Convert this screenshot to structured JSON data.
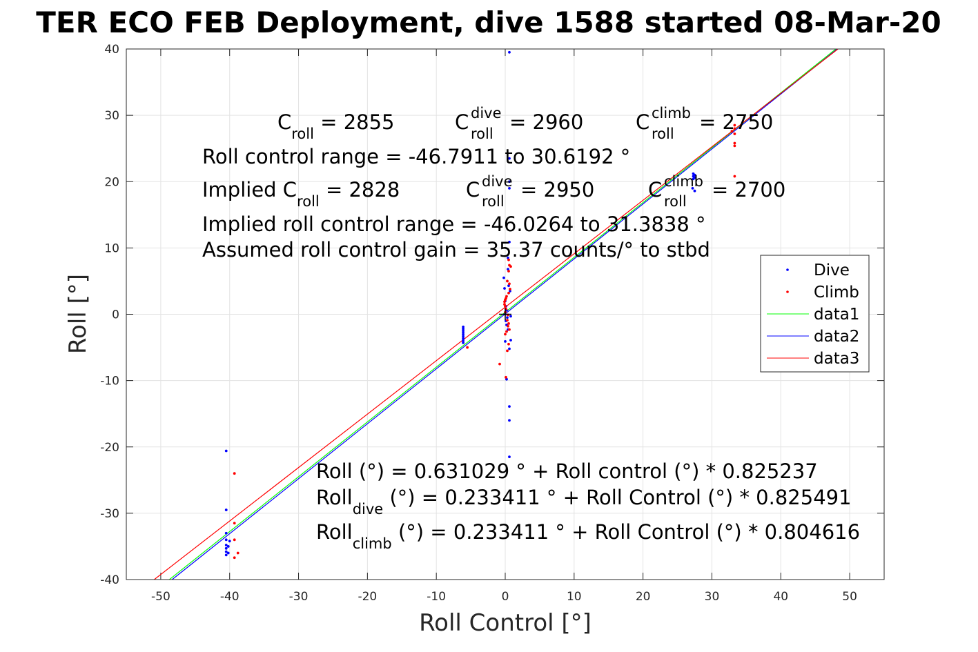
{
  "title": "TER ECO FEB Deployment, dive 1588 started 08-Mar-20",
  "chart_data": {
    "type": "scatter",
    "title": "TER ECO FEB Deployment, dive 1588 started 08-Mar-20",
    "xlabel": "Roll Control [°]",
    "ylabel": "Roll [°]",
    "xlim": [
      -55,
      55
    ],
    "ylim": [
      -40,
      40
    ],
    "x_ticks": [
      -50,
      -40,
      -30,
      -20,
      -10,
      0,
      10,
      20,
      30,
      40,
      50
    ],
    "y_ticks": [
      -40,
      -30,
      -20,
      -10,
      0,
      10,
      20,
      30,
      40
    ],
    "x_tick_labels": [
      "-50",
      "-40",
      "-30",
      "-20",
      "-10",
      "0",
      "10",
      "20",
      "30",
      "40",
      "50"
    ],
    "y_tick_labels": [
      "-40",
      "-30",
      "-20",
      "-10",
      "0",
      "10",
      "20",
      "30",
      "40"
    ],
    "grid": true,
    "legend_position": "right",
    "series": [
      {
        "name": "Dive",
        "kind": "points",
        "color": "#0000ff",
        "points": [
          [
            -40.5,
            -20.6
          ],
          [
            -40.5,
            -29.5
          ],
          [
            -40.5,
            -33.0
          ],
          [
            -40.5,
            -34.0
          ],
          [
            -40.5,
            -34.8
          ],
          [
            -40.5,
            -35.3
          ],
          [
            -40.5,
            -35.8
          ],
          [
            -40.5,
            -36.3
          ],
          [
            -40.2,
            -35.0
          ],
          [
            -40.2,
            -36.0
          ],
          [
            -40.0,
            -34.2
          ],
          [
            -6.1,
            -1.9
          ],
          [
            -6.1,
            -2.2
          ],
          [
            -6.1,
            -2.5
          ],
          [
            -6.1,
            -2.8
          ],
          [
            -6.1,
            -3.1
          ],
          [
            -6.1,
            -3.4
          ],
          [
            -6.1,
            -3.7
          ],
          [
            -6.1,
            -4.0
          ],
          [
            -6.1,
            -4.3
          ],
          [
            0.6,
            39.5
          ],
          [
            0.6,
            23.5
          ],
          [
            0.6,
            20.0
          ],
          [
            0.6,
            19.0
          ],
          [
            0.6,
            10.9
          ],
          [
            0.4,
            8.5
          ],
          [
            0.4,
            6.8
          ],
          [
            0.5,
            4.3
          ],
          [
            0.7,
            3.5
          ],
          [
            -0.2,
            5.5
          ],
          [
            -0.1,
            3.9
          ],
          [
            0.0,
            2.0
          ],
          [
            0.1,
            1.2
          ],
          [
            0.2,
            0.6
          ],
          [
            0.0,
            0.0
          ],
          [
            0.3,
            -0.5
          ],
          [
            0.1,
            -1.0
          ],
          [
            0.2,
            -1.6
          ],
          [
            0.4,
            -2.3
          ],
          [
            0.8,
            -3.9
          ],
          [
            0.0,
            -4.1
          ],
          [
            0.6,
            -5.2
          ],
          [
            0.8,
            -0.3
          ],
          [
            0.2,
            -9.8
          ],
          [
            0.6,
            -13.9
          ],
          [
            0.6,
            -16.0
          ],
          [
            0.6,
            -21.5
          ],
          [
            27.3,
            21.2
          ],
          [
            27.3,
            20.8
          ],
          [
            27.3,
            20.4
          ],
          [
            27.5,
            21.0
          ],
          [
            27.5,
            20.6
          ],
          [
            27.2,
            19.0
          ],
          [
            27.5,
            18.6
          ]
        ]
      },
      {
        "name": "Climb",
        "kind": "points",
        "color": "#ff0000",
        "points": [
          [
            -39.3,
            -24.0
          ],
          [
            -39.3,
            -31.5
          ],
          [
            -39.3,
            -34.0
          ],
          [
            -38.8,
            -36.0
          ],
          [
            -39.3,
            -36.7
          ],
          [
            -5.5,
            -5.0
          ],
          [
            -0.8,
            -7.5
          ],
          [
            0.1,
            -9.5
          ],
          [
            0.5,
            8.2
          ],
          [
            0.6,
            7.4
          ],
          [
            0.8,
            7.2
          ],
          [
            0.5,
            6.5
          ],
          [
            0.3,
            5.0
          ],
          [
            0.6,
            4.6
          ],
          [
            0.7,
            3.8
          ],
          [
            0.5,
            3.2
          ],
          [
            0.2,
            2.7
          ],
          [
            0.1,
            2.4
          ],
          [
            0.0,
            2.2
          ],
          [
            -0.1,
            1.9
          ],
          [
            -0.1,
            1.5
          ],
          [
            0.0,
            1.2
          ],
          [
            0.1,
            0.8
          ],
          [
            0.0,
            0.3
          ],
          [
            0.4,
            -0.1
          ],
          [
            0.3,
            -0.9
          ],
          [
            0.5,
            -1.4
          ],
          [
            0.4,
            -1.8
          ],
          [
            0.6,
            -2.3
          ],
          [
            0.2,
            -2.6
          ],
          [
            0.0,
            -3.0
          ],
          [
            0.5,
            -4.5
          ],
          [
            0.3,
            -5.5
          ],
          [
            33.3,
            28.5
          ],
          [
            33.3,
            28.0
          ],
          [
            32.9,
            27.6
          ],
          [
            33.3,
            27.2
          ],
          [
            33.3,
            25.8
          ],
          [
            33.3,
            25.4
          ],
          [
            33.3,
            20.8
          ]
        ]
      },
      {
        "name": "data1",
        "kind": "line",
        "color": "#00ff00",
        "points": [
          [
            -48.75,
            -40.0
          ],
          [
            48.0,
            40.0
          ]
        ]
      },
      {
        "name": "data2",
        "kind": "line",
        "color": "#0000ff",
        "points": [
          [
            -48.35,
            -40.0
          ],
          [
            48.2,
            40.0
          ]
        ]
      },
      {
        "name": "data3",
        "kind": "line",
        "color": "#ff0000",
        "points": [
          [
            -50.95,
            -40.0
          ],
          [
            48.3,
            40.0
          ]
        ]
      }
    ],
    "crosshair": {
      "x": 0,
      "y": 0,
      "half_size": 0.9,
      "color": "#000000"
    }
  },
  "legend": {
    "items": [
      {
        "label": "Dive",
        "kind": "marker",
        "color": "#0000ff"
      },
      {
        "label": "Climb",
        "kind": "marker",
        "color": "#ff0000"
      },
      {
        "label": "data1",
        "kind": "line",
        "color": "#00ff00"
      },
      {
        "label": "data2",
        "kind": "line",
        "color": "#0000ff"
      },
      {
        "label": "data3",
        "kind": "line",
        "color": "#ff0000"
      }
    ]
  },
  "annotations": {
    "c_roll_label": "C",
    "roll_sub": "roll",
    "dive_sup": "dive",
    "climb_sup": "climb",
    "c_roll_value": " = 2855",
    "c_dive_value": " = 2960",
    "c_climb_value": " = 2750",
    "roll_control_range": "Roll control range = -46.7911 to 30.6192 °",
    "implied_prefix": "Implied C",
    "implied_c_roll_value": " = 2828",
    "implied_c_dive_value": " = 2950",
    "implied_c_climb_value": " = 2700",
    "implied_roll_control_range": "Implied roll control range = -46.0264 to 31.3838 °",
    "assumed_gain": "Assumed roll control gain = 35.37 counts/° to stbd",
    "fit_all": "Roll (°) = 0.631029 ° + Roll control (°) * 0.825237",
    "fit_roll_word": "Roll",
    "dive_sub": "dive",
    "climb_sub": "climb",
    "fit_dive_rest": " (°) = 0.233411 ° + Roll Control (°) * 0.825491",
    "fit_climb_rest": " (°) = 0.233411 ° + Roll Control (°) * 0.804616"
  }
}
